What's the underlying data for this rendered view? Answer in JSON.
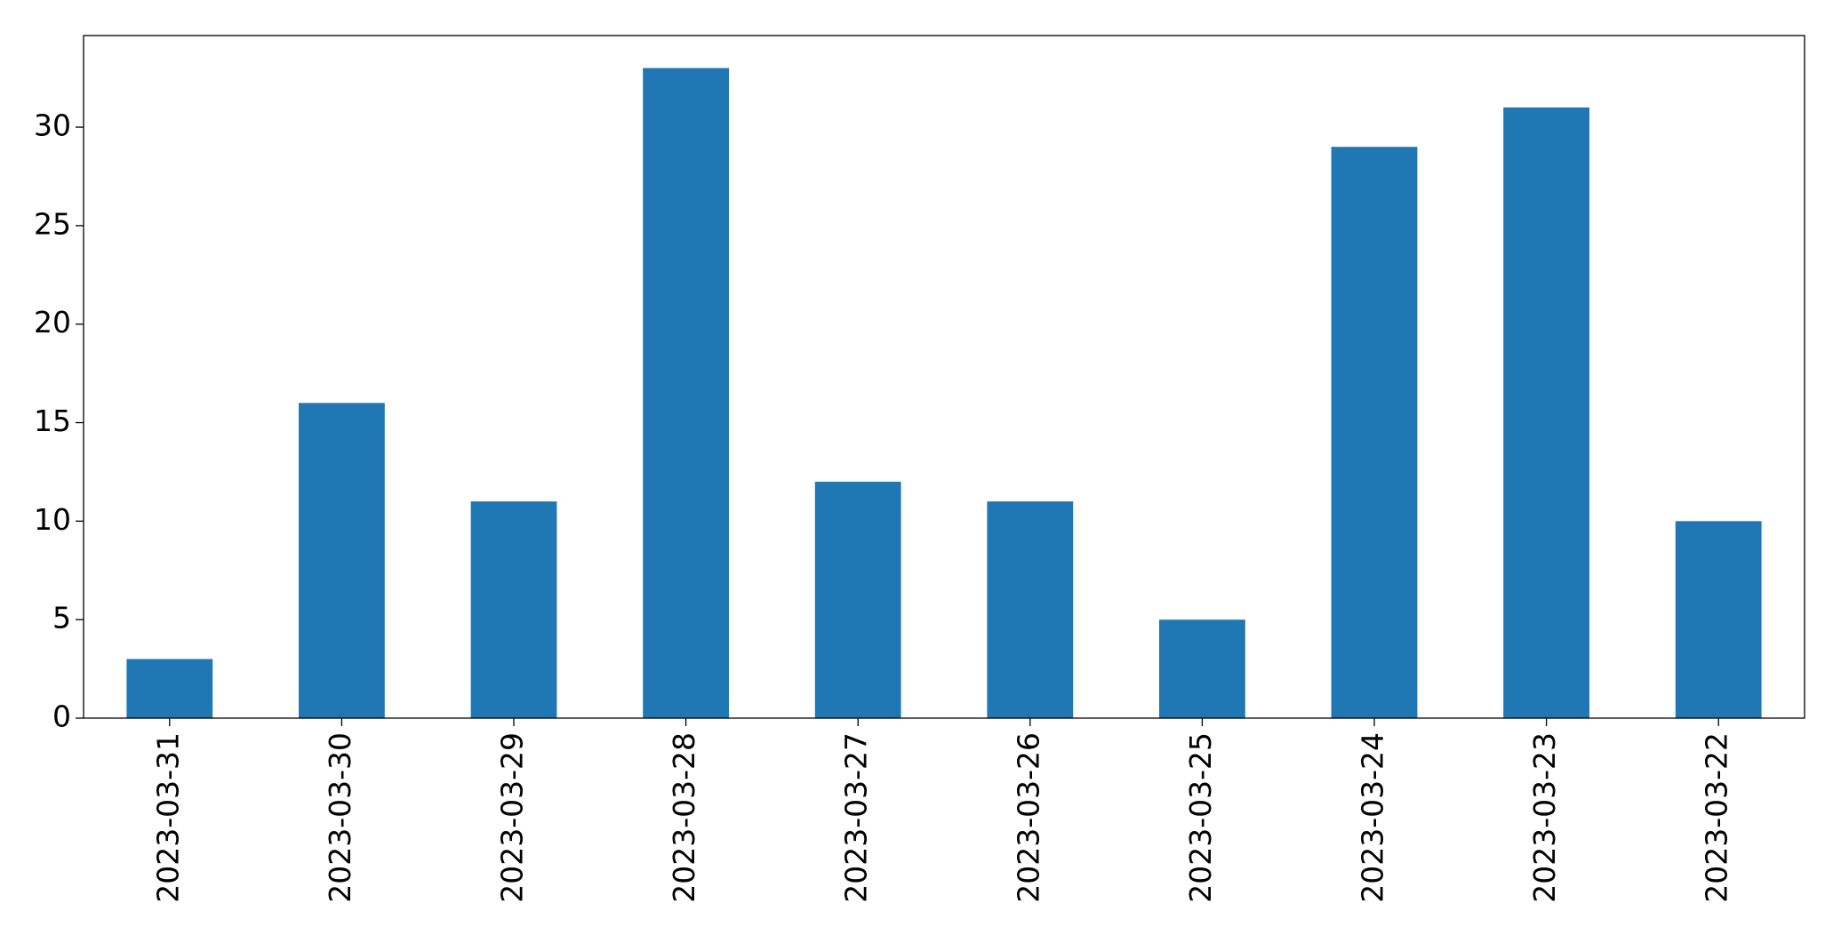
{
  "chart_data": {
    "type": "bar",
    "categories": [
      "2023-03-31",
      "2023-03-30",
      "2023-03-29",
      "2023-03-28",
      "2023-03-27",
      "2023-03-26",
      "2023-03-25",
      "2023-03-24",
      "2023-03-23",
      "2023-03-22"
    ],
    "values": [
      3,
      16,
      11,
      33,
      12,
      11,
      5,
      29,
      31,
      10
    ],
    "color": "#1f77b4",
    "ylim": [
      0,
      34.65
    ],
    "yticks": [
      0,
      5,
      10,
      15,
      20,
      25,
      30
    ],
    "grid": false
  }
}
